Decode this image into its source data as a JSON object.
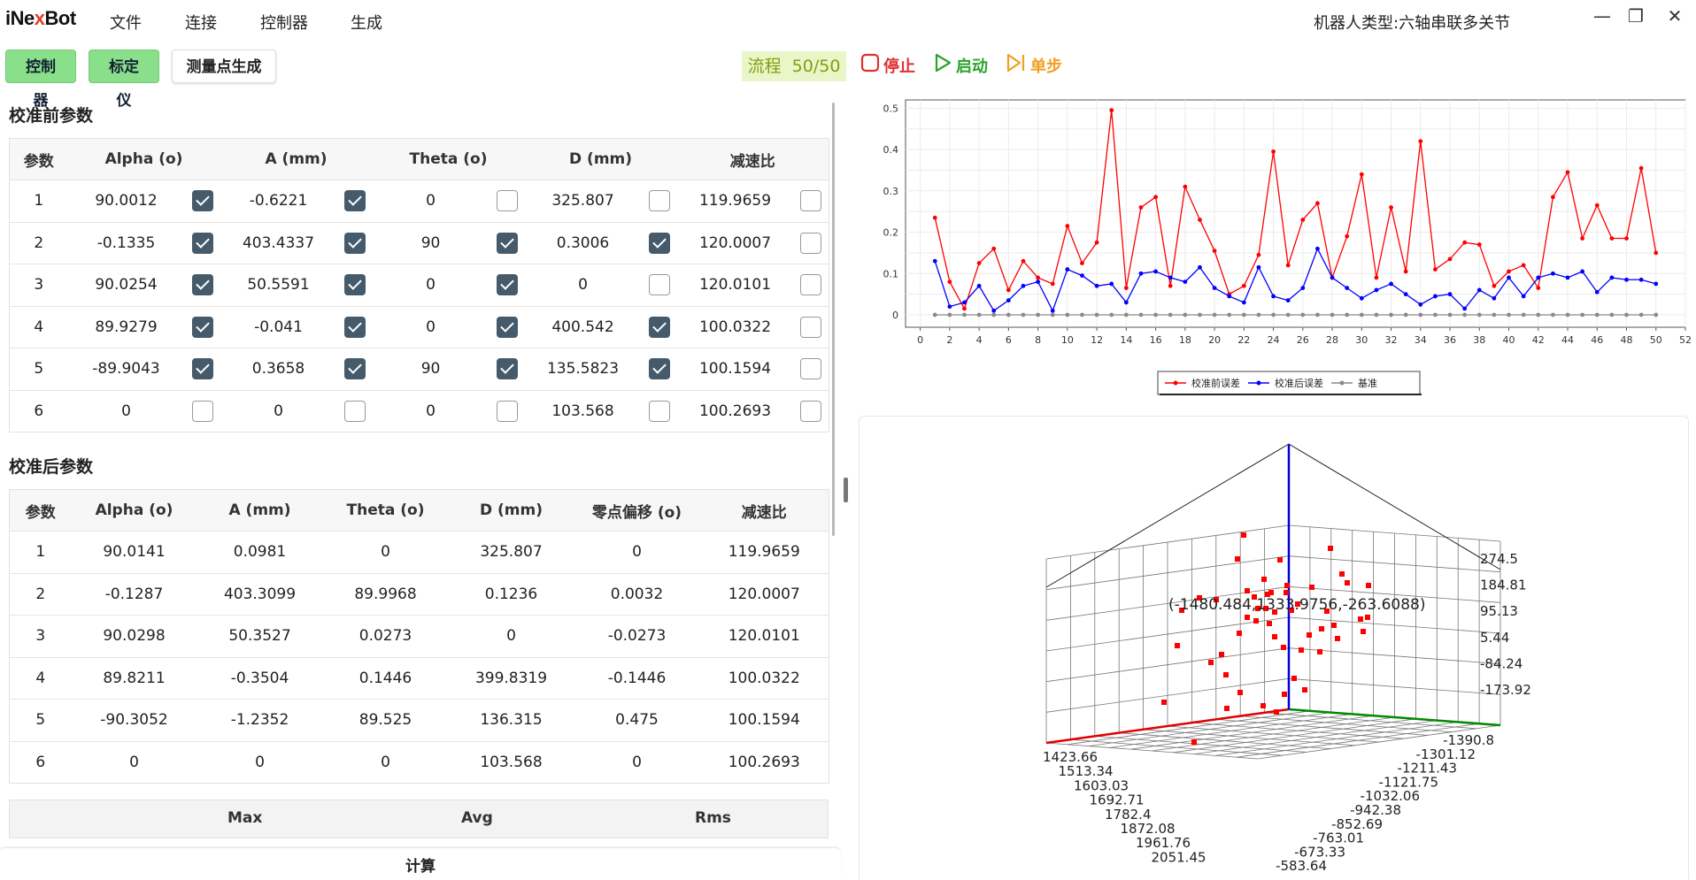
{
  "app": {
    "logo_main": "iNe",
    "logo_x": "x",
    "logo_tail": "Bot",
    "menus": [
      "文件",
      "连接",
      "控制器",
      "生成"
    ],
    "robot_type": "机器人类型:六轴串联多关节"
  },
  "toolbar": {
    "controller": "控制器",
    "calibrator": "标定仪",
    "measure_gen": "测量点生成",
    "flow_label": "流程",
    "flow_value": "50/50",
    "stop": "停止",
    "start": "启动",
    "step": "单步"
  },
  "before": {
    "title": "校准前参数",
    "headers": [
      "参数",
      "Alpha (o)",
      "A (mm)",
      "Theta (o)",
      "D (mm)",
      "减速比"
    ],
    "rows": [
      {
        "id": "1",
        "alpha": "90.0012",
        "alpha_c": true,
        "a": "-0.6221",
        "a_c": true,
        "theta": "0",
        "theta_c": false,
        "d": "325.807",
        "d_c": false,
        "ratio": "119.9659",
        "ratio_c": false
      },
      {
        "id": "2",
        "alpha": "-0.1335",
        "alpha_c": true,
        "a": "403.4337",
        "a_c": true,
        "theta": "90",
        "theta_c": true,
        "d": "0.3006",
        "d_c": true,
        "ratio": "120.0007",
        "ratio_c": false
      },
      {
        "id": "3",
        "alpha": "90.0254",
        "alpha_c": true,
        "a": "50.5591",
        "a_c": true,
        "theta": "0",
        "theta_c": true,
        "d": "0",
        "d_c": false,
        "ratio": "120.0101",
        "ratio_c": false
      },
      {
        "id": "4",
        "alpha": "89.9279",
        "alpha_c": true,
        "a": "-0.041",
        "a_c": true,
        "theta": "0",
        "theta_c": true,
        "d": "400.542",
        "d_c": true,
        "ratio": "100.0322",
        "ratio_c": false
      },
      {
        "id": "5",
        "alpha": "-89.9043",
        "alpha_c": true,
        "a": "0.3658",
        "a_c": true,
        "theta": "90",
        "theta_c": true,
        "d": "135.5823",
        "d_c": true,
        "ratio": "100.1594",
        "ratio_c": false
      },
      {
        "id": "6",
        "alpha": "0",
        "alpha_c": false,
        "a": "0",
        "a_c": false,
        "theta": "0",
        "theta_c": false,
        "d": "103.568",
        "d_c": false,
        "ratio": "100.2693",
        "ratio_c": false
      }
    ]
  },
  "after": {
    "title": "校准后参数",
    "headers": [
      "参数",
      "Alpha (o)",
      "A (mm)",
      "Theta (o)",
      "D (mm)",
      "零点偏移 (o)",
      "减速比"
    ],
    "rows": [
      [
        "1",
        "90.0141",
        "0.0981",
        "0",
        "325.807",
        "0",
        "119.9659"
      ],
      [
        "2",
        "-0.1287",
        "403.3099",
        "89.9968",
        "0.1236",
        "0.0032",
        "120.0007"
      ],
      [
        "3",
        "90.0298",
        "50.3527",
        "0.0273",
        "0",
        "-0.0273",
        "120.0101"
      ],
      [
        "4",
        "89.8211",
        "-0.3504",
        "0.1446",
        "399.8319",
        "-0.1446",
        "100.0322"
      ],
      [
        "5",
        "-90.3052",
        "-1.2352",
        "89.525",
        "136.315",
        "0.475",
        "100.1594"
      ],
      [
        "6",
        "0",
        "0",
        "0",
        "103.568",
        "0",
        "100.2693"
      ]
    ]
  },
  "stats": {
    "max": "Max",
    "avg": "Avg",
    "rms": "Rms"
  },
  "calc_button": "计算",
  "chart_data": [
    {
      "type": "line",
      "x": [
        1,
        2,
        3,
        4,
        5,
        6,
        7,
        8,
        9,
        10,
        11,
        12,
        13,
        14,
        15,
        16,
        17,
        18,
        19,
        20,
        21,
        22,
        23,
        24,
        25,
        26,
        27,
        28,
        29,
        30,
        31,
        32,
        33,
        34,
        35,
        36,
        37,
        38,
        39,
        40,
        41,
        42,
        43,
        44,
        45,
        46,
        47,
        48,
        49,
        50
      ],
      "series": [
        {
          "name": "校准前误差",
          "color": "#ff0000",
          "values": [
            0.235,
            0.08,
            0.015,
            0.125,
            0.16,
            0.06,
            0.13,
            0.09,
            0.075,
            0.215,
            0.125,
            0.175,
            0.495,
            0.065,
            0.26,
            0.285,
            0.07,
            0.31,
            0.23,
            0.155,
            0.05,
            0.07,
            0.145,
            0.395,
            0.12,
            0.23,
            0.27,
            0.09,
            0.19,
            0.34,
            0.09,
            0.26,
            0.105,
            0.42,
            0.11,
            0.135,
            0.175,
            0.17,
            0.07,
            0.105,
            0.12,
            0.065,
            0.285,
            0.345,
            0.185,
            0.265,
            0.185,
            0.185,
            0.355,
            0.15
          ]
        },
        {
          "name": "校准后误差",
          "color": "#0000ff",
          "values": [
            0.13,
            0.02,
            0.03,
            0.07,
            0.01,
            0.035,
            0.07,
            0.08,
            0.01,
            0.11,
            0.095,
            0.07,
            0.075,
            0.03,
            0.1,
            0.105,
            0.09,
            0.08,
            0.115,
            0.065,
            0.045,
            0.03,
            0.115,
            0.045,
            0.035,
            0.065,
            0.16,
            0.09,
            0.065,
            0.04,
            0.06,
            0.075,
            0.05,
            0.025,
            0.045,
            0.05,
            0.015,
            0.06,
            0.04,
            0.09,
            0.045,
            0.09,
            0.1,
            0.09,
            0.105,
            0.055,
            0.09,
            0.085,
            0.085,
            0.075
          ]
        },
        {
          "name": "基准",
          "color": "#8a8a8a",
          "values": [
            0,
            0,
            0,
            0,
            0,
            0,
            0,
            0,
            0,
            0,
            0,
            0,
            0,
            0,
            0,
            0,
            0,
            0,
            0,
            0,
            0,
            0,
            0,
            0,
            0,
            0,
            0,
            0,
            0,
            0,
            0,
            0,
            0,
            0,
            0,
            0,
            0,
            0,
            0,
            0,
            0,
            0,
            0,
            0,
            0,
            0,
            0,
            0,
            0,
            0
          ]
        }
      ],
      "xticks": [
        "0",
        "2",
        "4",
        "6",
        "8",
        "10",
        "12",
        "14",
        "16",
        "18",
        "20",
        "22",
        "24",
        "26",
        "28",
        "30",
        "32",
        "34",
        "36",
        "38",
        "40",
        "42",
        "44",
        "46",
        "48",
        "50",
        "52"
      ],
      "yticks": [
        "0",
        "0.1",
        "0.2",
        "0.3",
        "0.4",
        "0.5"
      ],
      "xlim": [
        -1,
        52
      ],
      "ylim": [
        -0.03,
        0.52
      ],
      "grid": true,
      "legend": "bottom-center"
    },
    {
      "type": "scatter",
      "annotation": "(-1480.484,1333.9756,-263.6088)",
      "z_ticks": [
        "274.5",
        "184.81",
        "95.13",
        "5.44",
        "-84.24",
        "-173.92"
      ],
      "y_ticks": [
        "-1390.8",
        "-1301.12",
        "-1211.43",
        "-1121.75",
        "-1032.06",
        "-942.38",
        "-852.69",
        "-763.01",
        "-673.33",
        "-583.64"
      ],
      "x_ticks": [
        "1423.66",
        "1513.34",
        "1603.03",
        "1692.71",
        "1782.4",
        "1872.08",
        "1961.76",
        "2051.45"
      ]
    }
  ]
}
